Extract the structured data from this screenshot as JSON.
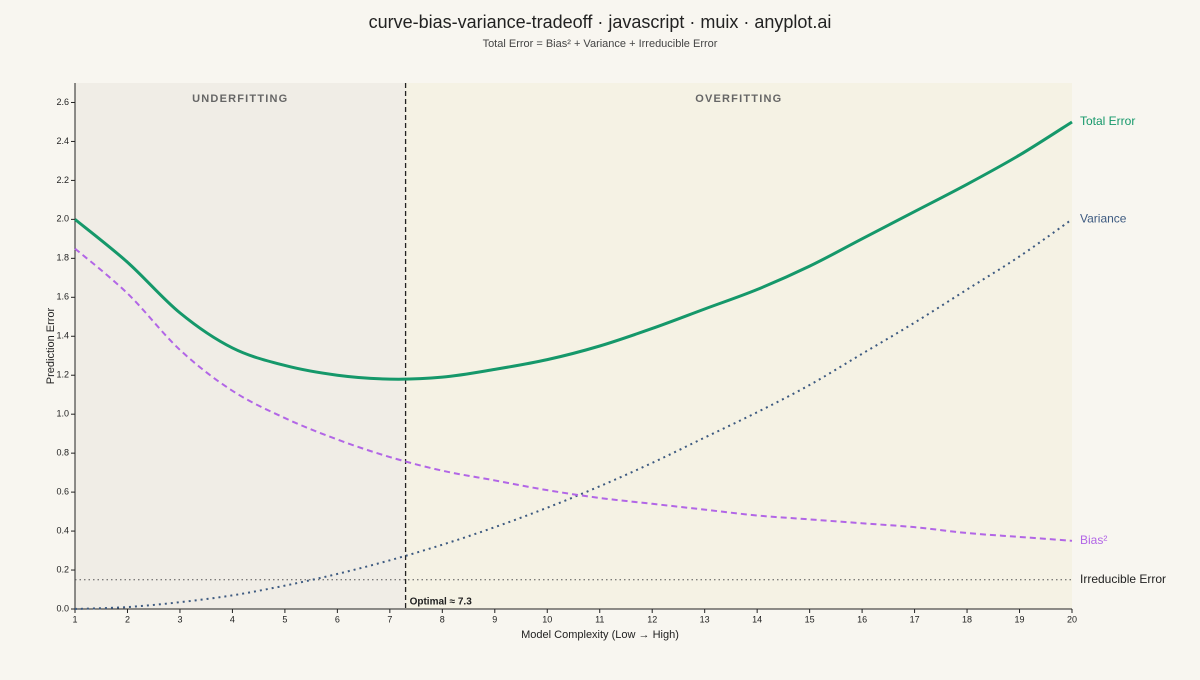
{
  "chart_data": {
    "type": "line",
    "title": "curve-bias-variance-tradeoff · javascript · muix · anyplot.ai",
    "subtitle": "Total Error = Bias² + Variance + Irreducible Error",
    "x_label": "Model Complexity (Low → High)",
    "y_label": "Prediction Error",
    "x": [
      1,
      2,
      3,
      4,
      5,
      6,
      7,
      8,
      9,
      10,
      11,
      12,
      13,
      14,
      15,
      16,
      17,
      18,
      19,
      20
    ],
    "series": [
      {
        "name": "Total Error",
        "color": "#15986a",
        "style": "solid",
        "values": [
          2.0,
          1.78,
          1.52,
          1.34,
          1.25,
          1.2,
          1.18,
          1.19,
          1.23,
          1.28,
          1.35,
          1.44,
          1.54,
          1.64,
          1.76,
          1.9,
          2.04,
          2.18,
          2.33,
          2.5
        ]
      },
      {
        "name": "Variance",
        "color": "#3d5a80",
        "style": "dotted",
        "values": [
          0,
          0.01,
          0.035,
          0.07,
          0.12,
          0.18,
          0.25,
          0.33,
          0.42,
          0.52,
          0.63,
          0.75,
          0.88,
          1.01,
          1.15,
          1.31,
          1.47,
          1.64,
          1.81,
          2.0
        ]
      },
      {
        "name": "Bias²",
        "color": "#b266e6",
        "style": "dashed",
        "values": [
          1.85,
          1.62,
          1.33,
          1.12,
          0.98,
          0.87,
          0.78,
          0.71,
          0.66,
          0.61,
          0.57,
          0.54,
          0.51,
          0.48,
          0.46,
          0.44,
          0.42,
          0.39,
          0.37,
          0.35
        ]
      }
    ],
    "reference_lines": [
      {
        "name": "Irreducible Error",
        "value": 0.15,
        "color": "#555555"
      }
    ],
    "optimal": {
      "value": 7.3,
      "label": "Optimal ≈ 7.3"
    },
    "regions": [
      {
        "label": "UNDERFITTING",
        "from": 1,
        "to": 7.3,
        "color": "#f0ede6"
      },
      {
        "label": "OVERFITTING",
        "from": 7.3,
        "to": 20,
        "color": "#f5f2e4"
      }
    ],
    "xlim": [
      1,
      20
    ],
    "xticks": [
      1,
      2,
      3,
      4,
      5,
      6,
      7,
      8,
      9,
      10,
      11,
      12,
      13,
      14,
      15,
      16,
      17,
      18,
      19,
      20
    ],
    "ylim": [
      0,
      2.7
    ],
    "yticks": [
      {
        "value": 0,
        "label": "0.0"
      },
      0.2,
      0.4,
      0.6,
      0.8,
      {
        "value": 1,
        "label": "1.0"
      },
      1.2,
      1.4,
      1.6,
      1.8,
      {
        "value": 2,
        "label": "2.0"
      },
      2.2,
      2.4,
      2.6
    ]
  }
}
